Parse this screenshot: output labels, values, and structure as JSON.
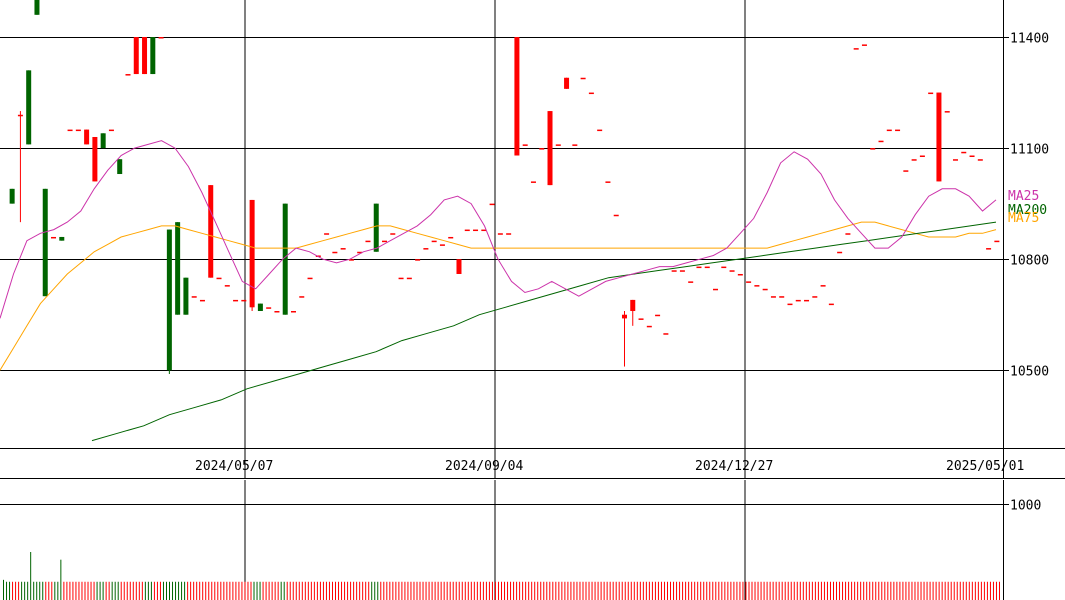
{
  "chart_data": [
    {
      "type": "candlestick",
      "title": "",
      "xlabel": "",
      "ylabel": "",
      "ylim": [
        10290,
        11500
      ],
      "y_ticks": [
        10500,
        10800,
        11100,
        11400
      ],
      "y_tick_labels": [
        "10500",
        "10800",
        "11100",
        "11400"
      ],
      "x_tick_labels": [
        "2024/05/07",
        "2024/09/04",
        "2024/12/27",
        "2025/05/01"
      ],
      "grid": true,
      "up_color": "#ff0000",
      "down_color": "#006400",
      "legend": [
        {
          "name": "MA25",
          "color": "#cc33aa"
        },
        {
          "name": "MA200",
          "color": "#006400"
        },
        {
          "name": "MA75",
          "color": "#ffa500"
        }
      ],
      "legend_placement": "right",
      "candles": [
        [
          10990,
          10990,
          10950,
          10950
        ],
        [
          11190,
          11200,
          10900,
          11190
        ],
        [
          11310,
          11310,
          11110,
          11110
        ],
        [
          11500,
          11500,
          11460,
          11460
        ],
        [
          10990,
          10990,
          10700,
          10700
        ],
        [
          10860,
          10860,
          10860,
          10860
        ],
        [
          10860,
          10860,
          10850,
          10850
        ],
        [
          11150,
          11150,
          11150,
          11150
        ],
        [
          11150,
          11150,
          11150,
          11150
        ],
        [
          11110,
          11150,
          11110,
          11150
        ],
        [
          11010,
          11130,
          11010,
          11130
        ],
        [
          11140,
          11140,
          11100,
          11100
        ],
        [
          11150,
          11150,
          11150,
          11150
        ],
        [
          11070,
          11070,
          11030,
          11030
        ],
        [
          11300,
          11300,
          11300,
          11300
        ],
        [
          11300,
          11400,
          11300,
          11400
        ],
        [
          11300,
          11400,
          11300,
          11400
        ],
        [
          11400,
          11400,
          11300,
          11300
        ],
        [
          11400,
          11400,
          11400,
          11400
        ],
        [
          10880,
          10880,
          10490,
          10500
        ],
        [
          10900,
          10900,
          10650,
          10650
        ],
        [
          10750,
          10750,
          10650,
          10650
        ],
        [
          10700,
          10700,
          10700,
          10700
        ],
        [
          10690,
          10690,
          10690,
          10690
        ],
        [
          10750,
          11000,
          10750,
          11000
        ],
        [
          10750,
          10750,
          10750,
          10750
        ],
        [
          10730,
          10730,
          10730,
          10730
        ],
        [
          10690,
          10690,
          10690,
          10690
        ],
        [
          10690,
          10690,
          10690,
          10690
        ],
        [
          10670,
          10960,
          10660,
          10960
        ],
        [
          10680,
          10680,
          10660,
          10660
        ],
        [
          10670,
          10670,
          10670,
          10670
        ],
        [
          10660,
          10660,
          10660,
          10660
        ],
        [
          10950,
          10950,
          10650,
          10650
        ],
        [
          10660,
          10660,
          10660,
          10660
        ],
        [
          10700,
          10700,
          10700,
          10700
        ],
        [
          10750,
          10750,
          10750,
          10750
        ],
        [
          10810,
          10810,
          10810,
          10810
        ],
        [
          10870,
          10870,
          10870,
          10870
        ],
        [
          10820,
          10820,
          10820,
          10820
        ],
        [
          10830,
          10830,
          10830,
          10830
        ],
        [
          10800,
          10800,
          10800,
          10800
        ],
        [
          10820,
          10820,
          10820,
          10820
        ],
        [
          10850,
          10850,
          10850,
          10850
        ],
        [
          10950,
          10950,
          10820,
          10820
        ],
        [
          10850,
          10850,
          10850,
          10850
        ],
        [
          10870,
          10870,
          10870,
          10870
        ],
        [
          10750,
          10750,
          10750,
          10750
        ],
        [
          10750,
          10750,
          10750,
          10750
        ],
        [
          10800,
          10800,
          10800,
          10800
        ],
        [
          10830,
          10830,
          10830,
          10830
        ],
        [
          10850,
          10850,
          10850,
          10850
        ],
        [
          10840,
          10840,
          10840,
          10840
        ],
        [
          10860,
          10860,
          10860,
          10860
        ],
        [
          10760,
          10800,
          10760,
          10800
        ],
        [
          10880,
          10880,
          10880,
          10880
        ],
        [
          10880,
          10880,
          10880,
          10880
        ],
        [
          10880,
          10880,
          10880,
          10880
        ],
        [
          10950,
          10950,
          10950,
          10950
        ],
        [
          10870,
          10870,
          10870,
          10870
        ],
        [
          10870,
          10870,
          10870,
          10870
        ],
        [
          11080,
          11400,
          11080,
          11400
        ],
        [
          11110,
          11110,
          11110,
          11110
        ],
        [
          11010,
          11010,
          11010,
          11010
        ],
        [
          11100,
          11100,
          11100,
          11100
        ],
        [
          11000,
          11200,
          11000,
          11200
        ],
        [
          11110,
          11110,
          11110,
          11110
        ],
        [
          11260,
          11290,
          11260,
          11290
        ],
        [
          11110,
          11110,
          11110,
          11110
        ],
        [
          11290,
          11290,
          11290,
          11290
        ],
        [
          11250,
          11250,
          11250,
          11250
        ],
        [
          11150,
          11150,
          11150,
          11150
        ],
        [
          11010,
          11010,
          11010,
          11010
        ],
        [
          10920,
          10920,
          10920,
          10920
        ],
        [
          10640,
          10660,
          10510,
          10650
        ],
        [
          10660,
          10690,
          10620,
          10690
        ],
        [
          10640,
          10640,
          10640,
          10640
        ],
        [
          10620,
          10620,
          10620,
          10620
        ],
        [
          10650,
          10650,
          10650,
          10650
        ],
        [
          10600,
          10600,
          10600,
          10600
        ],
        [
          10770,
          10770,
          10770,
          10770
        ],
        [
          10770,
          10770,
          10770,
          10770
        ],
        [
          10740,
          10740,
          10740,
          10740
        ],
        [
          10780,
          10780,
          10780,
          10780
        ],
        [
          10780,
          10780,
          10780,
          10780
        ],
        [
          10720,
          10720,
          10720,
          10720
        ],
        [
          10780,
          10780,
          10780,
          10780
        ],
        [
          10770,
          10770,
          10770,
          10770
        ],
        [
          10760,
          10760,
          10760,
          10760
        ],
        [
          10740,
          10740,
          10740,
          10740
        ],
        [
          10730,
          10730,
          10730,
          10730
        ],
        [
          10720,
          10720,
          10720,
          10720
        ],
        [
          10700,
          10700,
          10700,
          10700
        ],
        [
          10700,
          10700,
          10700,
          10700
        ],
        [
          10680,
          10680,
          10680,
          10680
        ],
        [
          10690,
          10690,
          10690,
          10690
        ],
        [
          10690,
          10690,
          10690,
          10690
        ],
        [
          10700,
          10700,
          10700,
          10700
        ],
        [
          10730,
          10730,
          10730,
          10730
        ],
        [
          10680,
          10680,
          10680,
          10680
        ],
        [
          10820,
          10820,
          10820,
          10820
        ],
        [
          10870,
          10870,
          10870,
          10870
        ],
        [
          11370,
          11370,
          11370,
          11370
        ],
        [
          11380,
          11380,
          11380,
          11380
        ],
        [
          11100,
          11100,
          11100,
          11100
        ],
        [
          11120,
          11120,
          11120,
          11120
        ],
        [
          11150,
          11150,
          11150,
          11150
        ],
        [
          11150,
          11150,
          11150,
          11150
        ],
        [
          11040,
          11040,
          11040,
          11040
        ],
        [
          11070,
          11070,
          11070,
          11070
        ],
        [
          11080,
          11080,
          11080,
          11080
        ],
        [
          11250,
          11250,
          11250,
          11250
        ],
        [
          11010,
          11250,
          11010,
          11250
        ],
        [
          11200,
          11200,
          11200,
          11200
        ],
        [
          11070,
          11070,
          11070,
          11070
        ],
        [
          11090,
          11090,
          11090,
          11090
        ],
        [
          11080,
          11080,
          11080,
          11080
        ],
        [
          11070,
          11070,
          11070,
          11070
        ],
        [
          10830,
          10830,
          10830,
          10830
        ],
        [
          10850,
          10850,
          10850,
          10850
        ]
      ],
      "ma25": [
        10640,
        10760,
        10850,
        10870,
        10880,
        10900,
        10930,
        10990,
        11040,
        11080,
        11100,
        11110,
        11120,
        11100,
        11050,
        10980,
        10900,
        10820,
        10740,
        10720,
        10760,
        10800,
        10830,
        10820,
        10800,
        10790,
        10800,
        10820,
        10830,
        10850,
        10870,
        10890,
        10920,
        10960,
        10970,
        10950,
        10890,
        10800,
        10740,
        10710,
        10720,
        10740,
        10720,
        10700,
        10720,
        10740,
        10750,
        10760,
        10770,
        10780,
        10780,
        10790,
        10800,
        10810,
        10830,
        10870,
        10910,
        10980,
        11060,
        11090,
        11070,
        11030,
        10960,
        10910,
        10870,
        10830,
        10830,
        10860,
        10920,
        10970,
        10990,
        10990,
        10970,
        10930,
        10960
      ],
      "ma75": [
        10500,
        10560,
        10620,
        10680,
        10720,
        10760,
        10790,
        10820,
        10840,
        10860,
        10870,
        10880,
        10890,
        10890,
        10880,
        10870,
        10860,
        10850,
        10840,
        10830,
        10830,
        10830,
        10830,
        10840,
        10850,
        10860,
        10870,
        10880,
        10890,
        10890,
        10880,
        10870,
        10860,
        10850,
        10840,
        10830,
        10830,
        10830,
        10830,
        10830,
        10830,
        10830,
        10830,
        10830,
        10830,
        10830,
        10830,
        10830,
        10830,
        10830,
        10830,
        10830,
        10830,
        10830,
        10830,
        10830,
        10830,
        10830,
        10840,
        10850,
        10860,
        10870,
        10880,
        10890,
        10900,
        10900,
        10890,
        10880,
        10870,
        10860,
        10860,
        10860,
        10870,
        10870,
        10880
      ],
      "ma200": [
        10310,
        10330,
        10350,
        10380,
        10400,
        10420,
        10450,
        10470,
        10490,
        10510,
        10530,
        10550,
        10580,
        10600,
        10620,
        10650,
        10670,
        10690,
        10710,
        10730,
        10750,
        10760,
        10770,
        10780,
        10790,
        10800,
        10810,
        10820,
        10830,
        10840,
        10850,
        10860,
        10870,
        10880,
        10890,
        10900
      ]
    },
    {
      "type": "bar",
      "title": "",
      "xlabel": "",
      "ylabel": "",
      "ylim": [
        0,
        1250
      ],
      "y_ticks": [
        1000
      ],
      "y_tick_labels": [
        "1000"
      ],
      "values": [
        210,
        190,
        190,
        190,
        190,
        190,
        190,
        190,
        190,
        500,
        190,
        190,
        190,
        190,
        190,
        190,
        190,
        190,
        190,
        420,
        190,
        190,
        190,
        190,
        190,
        190,
        190,
        190,
        190,
        190,
        190,
        190,
        190,
        190,
        190,
        190,
        190,
        190,
        190,
        190,
        190,
        190,
        190,
        190,
        190,
        190,
        190,
        190,
        190,
        190,
        190,
        190,
        190,
        190,
        190,
        190,
        190,
        190,
        190,
        190,
        190,
        190,
        190,
        190,
        190,
        190,
        190,
        190,
        190,
        190,
        190,
        190,
        190,
        190,
        190,
        190,
        190,
        190,
        190,
        190,
        190,
        190,
        190,
        190,
        190,
        190,
        190,
        190,
        190,
        190,
        190,
        190,
        190,
        190,
        190,
        190,
        190,
        190,
        190,
        190,
        190,
        190,
        190,
        190,
        190,
        190,
        190,
        190,
        190,
        190,
        190,
        190,
        190,
        190,
        190,
        190,
        190,
        190,
        190,
        190,
        190,
        190,
        190,
        190,
        190,
        190,
        190,
        190,
        190,
        190,
        190,
        190,
        190,
        190,
        190,
        190,
        190,
        190,
        190,
        190,
        190,
        190,
        190,
        190,
        190,
        190,
        190,
        190,
        190,
        190,
        190,
        190,
        190,
        190,
        190,
        190,
        190,
        190,
        190,
        190,
        190,
        190,
        190,
        190,
        190,
        190,
        190,
        190,
        190,
        190,
        190,
        190,
        190,
        190,
        190,
        190,
        190,
        190,
        190,
        190,
        190,
        190,
        190,
        190,
        190,
        190,
        190,
        190,
        190,
        190,
        190,
        190,
        190,
        190,
        190,
        190,
        190,
        190,
        190,
        190,
        190,
        190,
        190,
        190,
        190,
        190,
        190,
        190,
        190,
        190,
        190,
        190,
        190,
        190,
        190,
        190,
        190,
        190,
        190,
        190,
        190,
        190,
        190,
        190,
        190,
        190,
        190,
        190,
        190,
        190,
        190,
        190,
        190,
        190,
        190,
        190,
        190,
        190,
        190,
        190,
        190,
        190,
        190,
        190,
        190,
        190,
        190,
        190,
        190,
        190,
        190,
        190,
        190,
        190,
        190,
        190,
        190,
        190,
        190,
        190,
        190,
        190,
        190,
        190,
        190,
        190,
        190,
        190,
        190,
        190,
        190,
        190,
        190,
        190,
        190,
        190,
        190,
        190,
        190,
        190,
        190,
        190,
        190,
        190,
        190,
        190,
        190,
        190,
        190,
        190,
        190,
        190,
        190,
        190,
        190,
        190,
        190,
        190,
        190,
        190,
        190,
        190,
        190,
        190,
        190,
        190,
        190,
        190,
        190,
        190,
        190,
        190,
        190,
        190,
        190,
        190,
        190,
        190,
        190,
        190,
        190,
        190,
        190,
        190,
        190,
        190,
        190,
        190,
        190,
        190,
        190
      ],
      "up_color": "#ff0000",
      "down_color": "#006400"
    }
  ]
}
